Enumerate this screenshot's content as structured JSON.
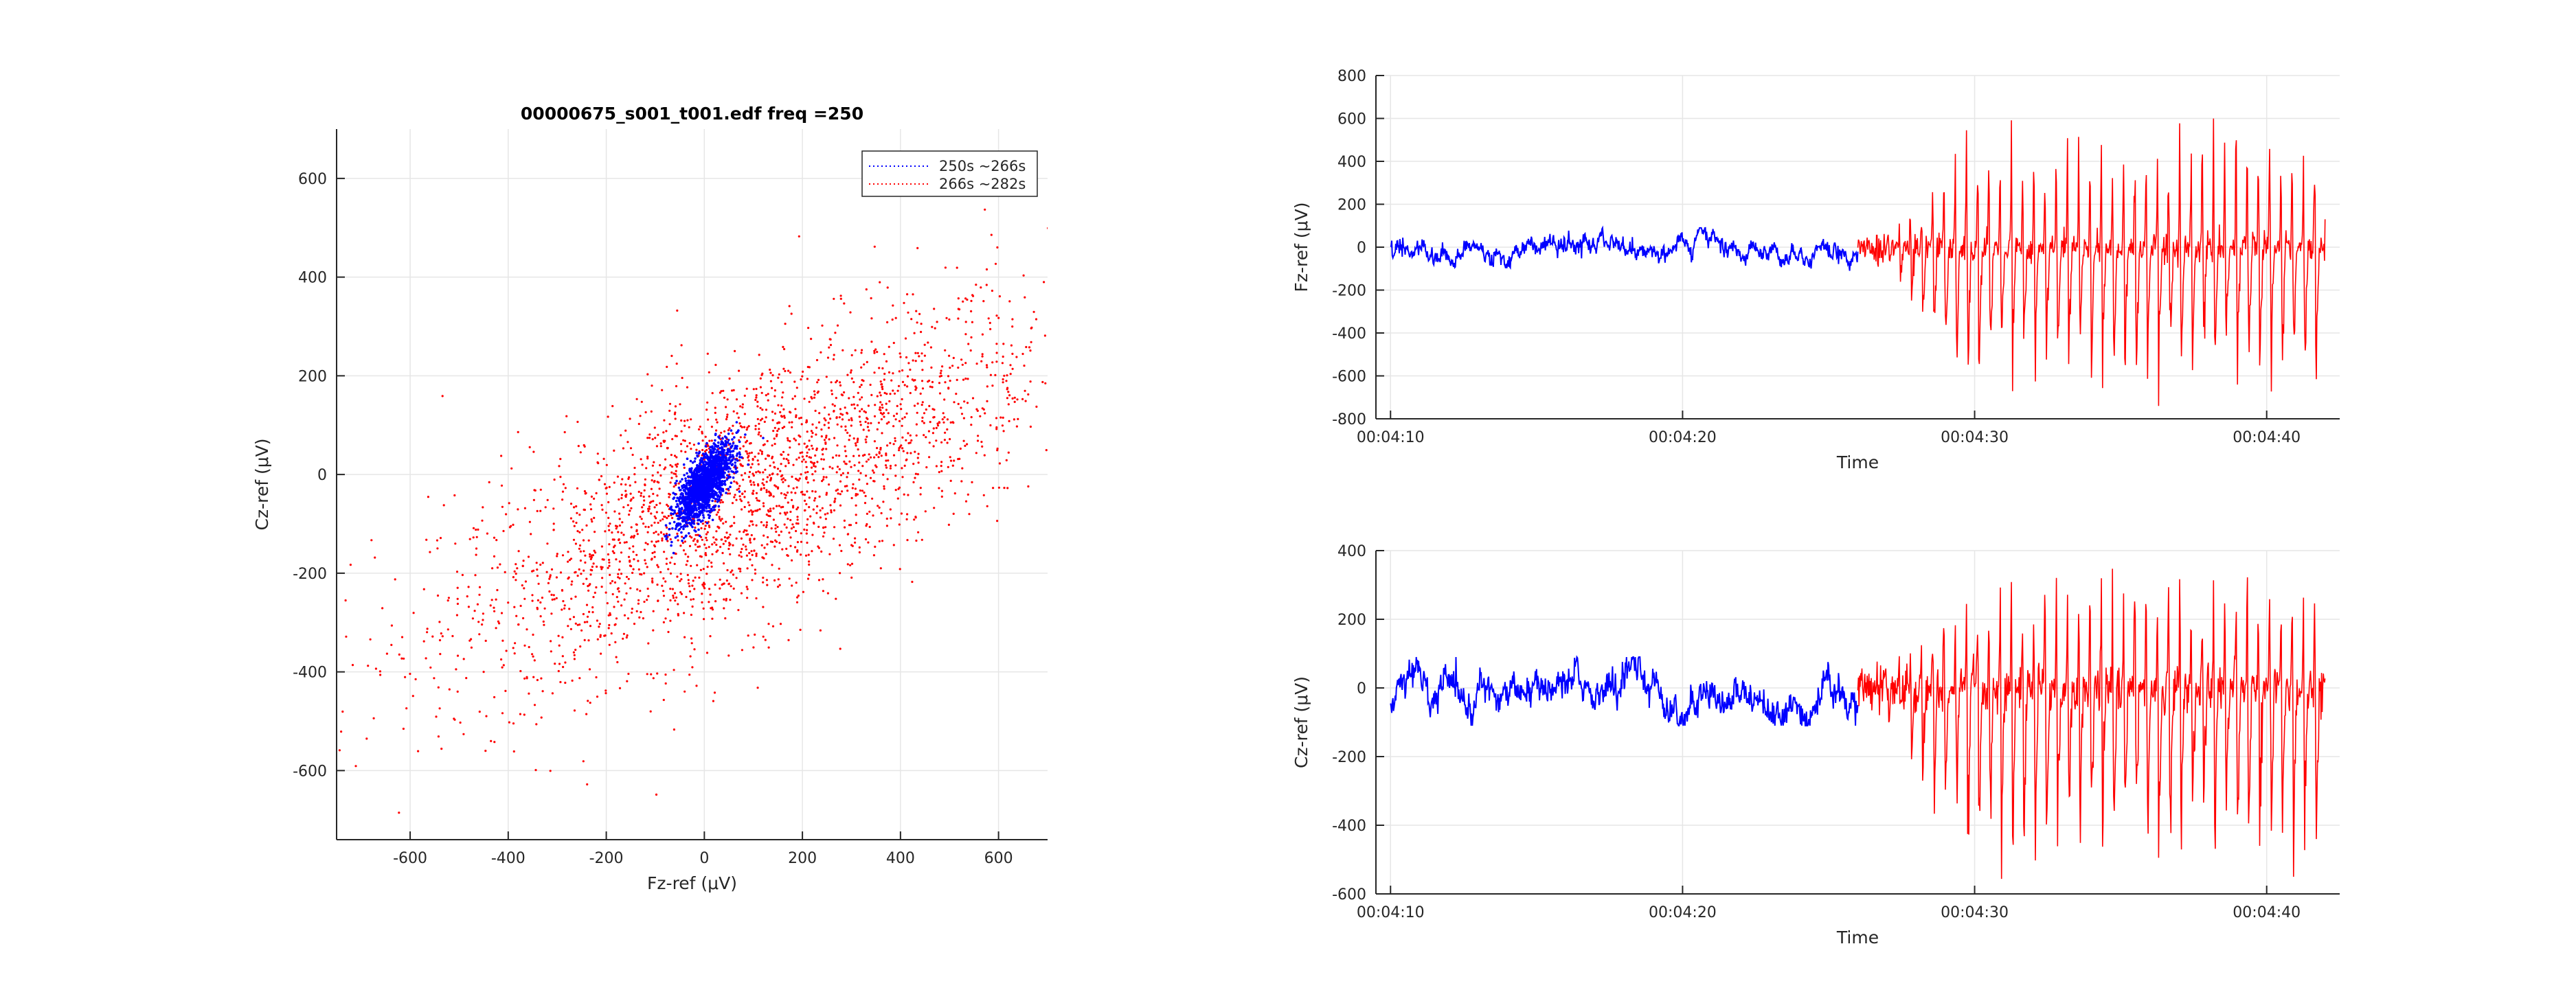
{
  "colors": {
    "blue": "#0000ff",
    "red": "#ff0000",
    "axis": "#262626",
    "grid": "#e6e6e6"
  },
  "chart_data": [
    {
      "id": "phase",
      "type": "scatter",
      "title": "00000675_s001_t001.edf freq =250",
      "xlabel": "Fz-ref (μV)",
      "ylabel": "Cz-ref (μV)",
      "xlim": [
        -750,
        700
      ],
      "ylim": [
        -740,
        700
      ],
      "xticks": [
        -600,
        -400,
        -200,
        0,
        200,
        400,
        600
      ],
      "yticks": [
        -600,
        -400,
        -200,
        0,
        200,
        400,
        600
      ],
      "xtick_labels": [
        "-600",
        "-400",
        "-200",
        "0",
        "200",
        "400",
        "600"
      ],
      "ytick_labels": [
        "-600",
        "-400",
        "-200",
        "0",
        "200",
        "400",
        "600"
      ],
      "grid": true,
      "legend": "top-right",
      "series": [
        {
          "name": "250s ~266s",
          "color": "#0000ff",
          "style": "dotted",
          "cx": 0,
          "cy": -20,
          "sx": 28,
          "sy": 40,
          "corr": 0.7,
          "points": 1800
        },
        {
          "name": "266s ~282s",
          "color": "#ff0000",
          "style": "dotted",
          "cx": 80,
          "cy": -40,
          "sx": 310,
          "sy": 190,
          "corr": 0.72,
          "points": 2600
        }
      ]
    },
    {
      "id": "fz",
      "type": "line",
      "title": "",
      "xlabel": "Time",
      "ylabel": "Fz-ref (μV)",
      "xlim": [
        249.5,
        282.5
      ],
      "ylim": [
        -800,
        800
      ],
      "xticks": [
        250,
        260,
        270,
        280
      ],
      "xtick_labels": [
        "00:04:10",
        "00:04:20",
        "00:04:30",
        "00:04:40"
      ],
      "yticks": [
        -800,
        -600,
        -400,
        -200,
        0,
        200,
        400,
        600,
        800
      ],
      "ytick_labels": [
        "-800",
        "-600",
        "-400",
        "-200",
        "0",
        "200",
        "400",
        "600",
        "800"
      ],
      "grid": true,
      "segments": [
        {
          "color": "#0000ff",
          "x_start": 250,
          "x_end": 266,
          "baseline": 0,
          "noise": 25
        },
        {
          "color": "#ff0000",
          "x_start": 266,
          "x_end": 282,
          "baseline": 0,
          "peak_max": 680,
          "trough_min": -740,
          "spikes_per_s": 2.6
        }
      ]
    },
    {
      "id": "cz",
      "type": "line",
      "title": "",
      "xlabel": "Time",
      "ylabel": "Cz-ref (μV)",
      "xlim": [
        249.5,
        282.5
      ],
      "ylim": [
        -600,
        400
      ],
      "xticks": [
        250,
        260,
        270,
        280
      ],
      "xtick_labels": [
        "00:04:10",
        "00:04:20",
        "00:04:30",
        "00:04:40"
      ],
      "yticks": [
        -600,
        -400,
        -200,
        0,
        200,
        400
      ],
      "ytick_labels": [
        "-600",
        "-400",
        "-200",
        "0",
        "200",
        "400"
      ],
      "grid": true,
      "segments": [
        {
          "color": "#0000ff",
          "x_start": 250,
          "x_end": 266,
          "baseline": -20,
          "noise": 30
        },
        {
          "color": "#ff0000",
          "x_start": 266,
          "x_end": 282,
          "baseline": 0,
          "peak_max": 390,
          "trough_min": -560,
          "spikes_per_s": 2.6
        }
      ]
    }
  ]
}
